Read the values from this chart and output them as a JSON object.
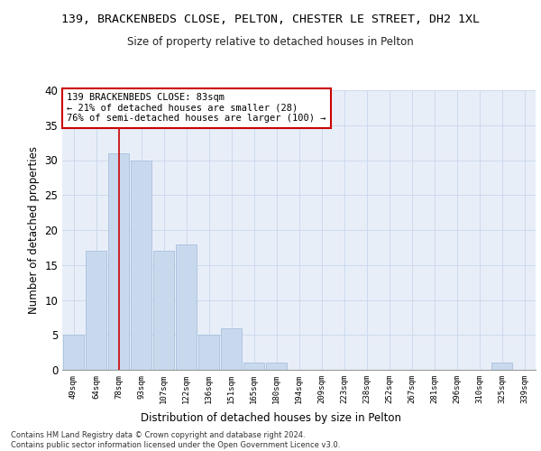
{
  "title": "139, BRACKENBEDS CLOSE, PELTON, CHESTER LE STREET, DH2 1XL",
  "subtitle": "Size of property relative to detached houses in Pelton",
  "xlabel": "Distribution of detached houses by size in Pelton",
  "ylabel": "Number of detached properties",
  "bar_color": "#c8d9ee",
  "bar_edge_color": "#a8c0dd",
  "categories": [
    "49sqm",
    "64sqm",
    "78sqm",
    "93sqm",
    "107sqm",
    "122sqm",
    "136sqm",
    "151sqm",
    "165sqm",
    "180sqm",
    "194sqm",
    "209sqm",
    "223sqm",
    "238sqm",
    "252sqm",
    "267sqm",
    "281sqm",
    "296sqm",
    "310sqm",
    "325sqm",
    "339sqm"
  ],
  "values": [
    5,
    17,
    31,
    30,
    17,
    18,
    5,
    6,
    1,
    1,
    0,
    0,
    0,
    0,
    0,
    0,
    0,
    0,
    0,
    1,
    0
  ],
  "ylim": [
    0,
    40
  ],
  "yticks": [
    0,
    5,
    10,
    15,
    20,
    25,
    30,
    35,
    40
  ],
  "annotation_text": "139 BRACKENBEDS CLOSE: 83sqm\n← 21% of detached houses are smaller (28)\n76% of semi-detached houses are larger (100) →",
  "annotation_box_color": "#ffffff",
  "annotation_box_edge": "#cc0000",
  "vline_color": "#cc0000",
  "grid_color": "#ccdaed",
  "background_color": "#e8eef8",
  "footer_line1": "Contains HM Land Registry data © Crown copyright and database right 2024.",
  "footer_line2": "Contains public sector information licensed under the Open Government Licence v3.0."
}
